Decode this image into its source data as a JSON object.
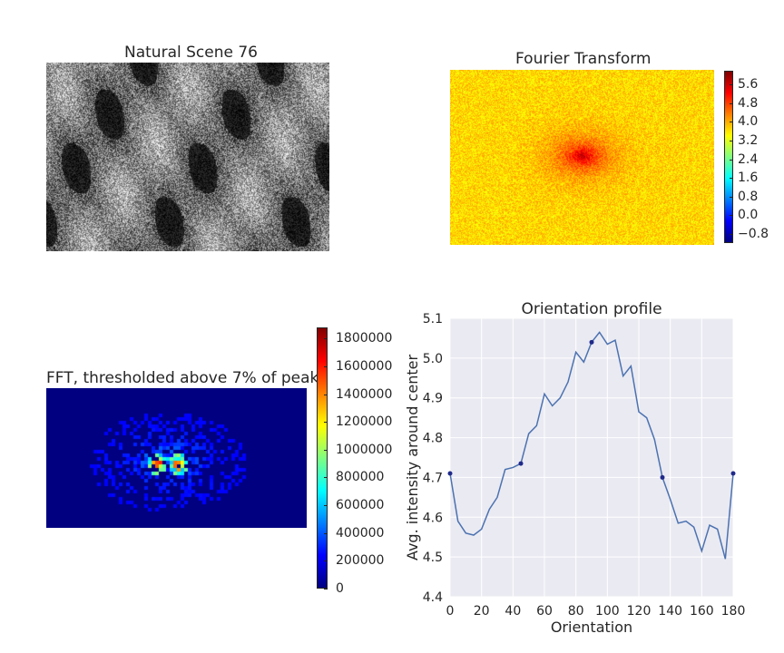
{
  "panels": {
    "scene": {
      "title": "Natural Scene 76"
    },
    "fourier": {
      "title": "Fourier Transform",
      "colorbar": {
        "ticks": [
          "5.6",
          "4.8",
          "4.0",
          "3.2",
          "2.4",
          "1.6",
          "0.8",
          "0.0",
          "−0.8"
        ],
        "tick_values": [
          5.6,
          4.8,
          4.0,
          3.2,
          2.4,
          1.6,
          0.8,
          0.0,
          -0.8
        ],
        "range": [
          -1.2,
          6.2
        ],
        "colormap": "jet"
      }
    },
    "threshold": {
      "title": "FFT, thresholded above 7% of peak",
      "colorbar": {
        "ticks": [
          "1800000",
          "1600000",
          "1400000",
          "1200000",
          "1000000",
          "800000",
          "600000",
          "400000",
          "200000",
          "0"
        ],
        "tick_values": [
          1800000,
          1600000,
          1400000,
          1200000,
          1000000,
          800000,
          600000,
          400000,
          200000,
          0
        ],
        "range": [
          0,
          1880000
        ],
        "colormap": "jet"
      }
    }
  },
  "chart_data": {
    "type": "line",
    "title": "Orientation profile",
    "xlabel": "Orientation",
    "ylabel": "Avg. intensity around center",
    "xlim": [
      0,
      180
    ],
    "ylim": [
      4.4,
      5.1
    ],
    "xticks": [
      "0",
      "20",
      "40",
      "60",
      "80",
      "100",
      "120",
      "140",
      "160",
      "180"
    ],
    "xtick_values": [
      0,
      20,
      40,
      60,
      80,
      100,
      120,
      140,
      160,
      180
    ],
    "yticks": [
      "4.4",
      "4.5",
      "4.6",
      "4.7",
      "4.8",
      "4.9",
      "5.0",
      "5.1"
    ],
    "ytick_values": [
      4.4,
      4.5,
      4.6,
      4.7,
      4.8,
      4.9,
      5.0,
      5.1
    ],
    "grid": true,
    "series": [
      {
        "x": [
          0,
          5,
          10,
          15,
          20,
          25,
          30,
          35,
          40,
          45,
          50,
          55,
          60,
          65,
          70,
          75,
          80,
          85,
          90,
          95,
          100,
          105,
          110,
          115,
          120,
          125,
          130,
          135,
          140,
          145,
          150,
          155,
          160,
          165,
          170,
          175,
          180
        ],
        "values": [
          4.71,
          4.59,
          4.56,
          4.555,
          4.57,
          4.62,
          4.65,
          4.72,
          4.725,
          4.735,
          4.81,
          4.83,
          4.91,
          4.88,
          4.9,
          4.94,
          5.015,
          4.99,
          5.04,
          5.065,
          5.035,
          5.045,
          4.955,
          4.98,
          4.865,
          4.85,
          4.795,
          4.7,
          4.645,
          4.585,
          4.59,
          4.575,
          4.515,
          4.58,
          4.57,
          4.495,
          4.71
        ]
      }
    ],
    "markers": {
      "x": [
        0,
        45,
        90,
        135,
        180
      ],
      "values": [
        4.71,
        4.735,
        5.04,
        4.7,
        4.71
      ]
    },
    "colors": {
      "line": "#4c72b0",
      "marker": "#1f2a8a",
      "background": "#eaeaf2",
      "grid": "#ffffff"
    }
  }
}
